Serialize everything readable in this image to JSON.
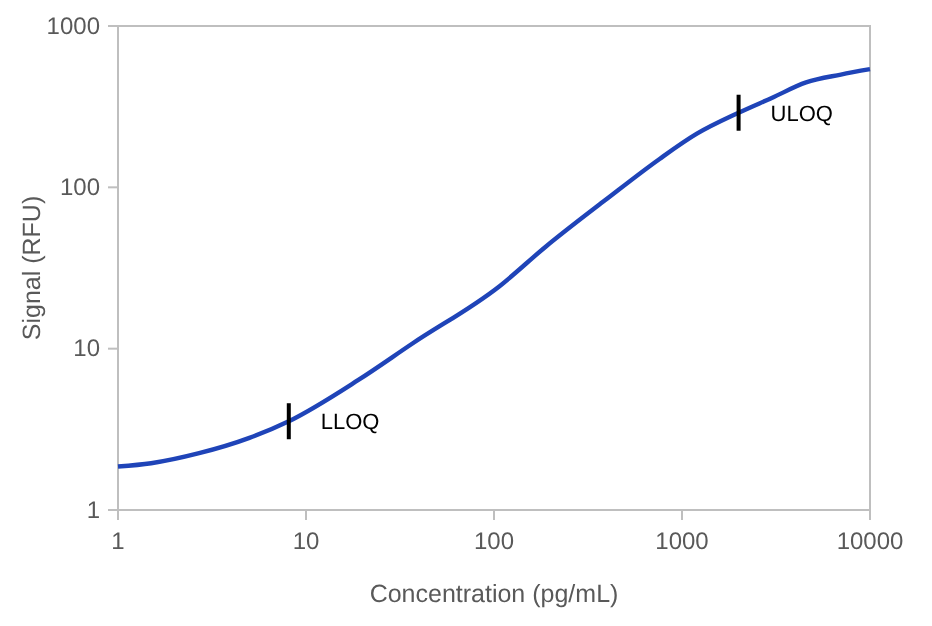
{
  "chart_data": {
    "type": "line",
    "xlabel": "Concentration (pg/mL)",
    "ylabel": "Signal (RFU)",
    "log": "xy",
    "xlim": [
      1,
      10000
    ],
    "ylim": [
      1,
      1000
    ],
    "xticks": [
      1,
      10,
      100,
      1000,
      10000
    ],
    "yticks": [
      1,
      10,
      100,
      1000
    ],
    "grid": false,
    "marker": "none",
    "line_style": "solid",
    "series": [
      {
        "color": "#1f44b8",
        "x": [
          1,
          1.5,
          2.7,
          5,
          8.1,
          19,
          37,
          107,
          189,
          394,
          760,
          1200,
          2000,
          3000,
          4570,
          7000,
          10000
        ],
        "values": [
          1.86,
          1.95,
          2.25,
          2.8,
          3.55,
          6.4,
          10.8,
          24.4,
          43,
          84,
          150,
          215,
          290,
          358,
          447,
          500,
          540
        ]
      }
    ],
    "annotations": [
      {
        "text": "LLOQ",
        "x": 8.1,
        "y": 3.55
      },
      {
        "text": "ULOQ",
        "x": 2000,
        "y": 290
      }
    ]
  }
}
